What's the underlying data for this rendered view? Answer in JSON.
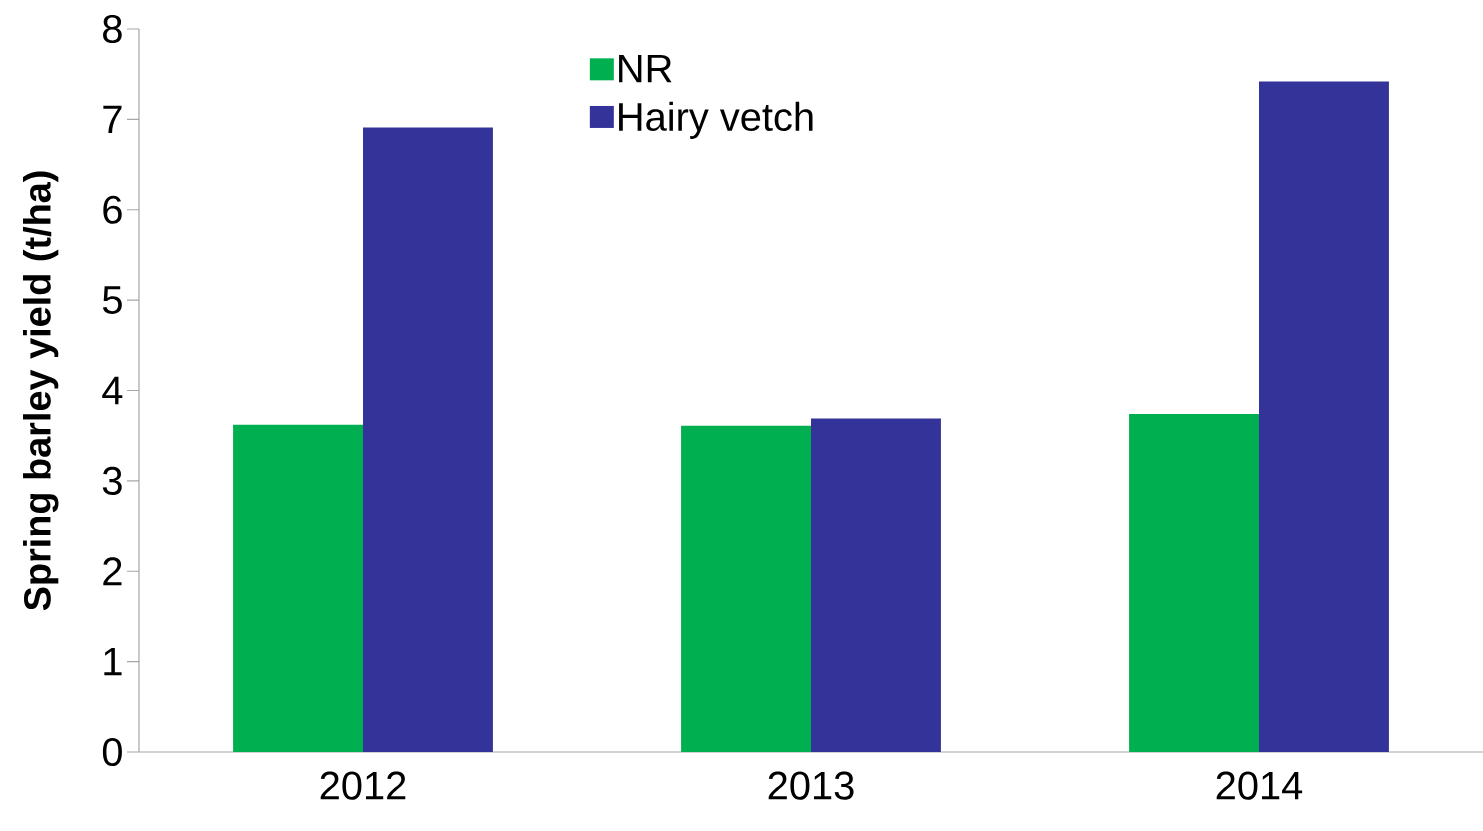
{
  "chart_data": {
    "type": "bar",
    "ylabel": "Spring barley yield (t/ha)",
    "categories": [
      "2012",
      "2013",
      "2014"
    ],
    "series": [
      {
        "name": "NR",
        "color": "#00b050",
        "values": [
          3.62,
          3.61,
          3.74
        ]
      },
      {
        "name": "Hairy vetch",
        "color": "#333399",
        "values": [
          6.91,
          3.69,
          7.42
        ]
      }
    ],
    "ylim": [
      0,
      8
    ],
    "yticks": [
      0,
      1,
      2,
      3,
      4,
      5,
      6,
      7,
      8
    ],
    "legend": "top"
  }
}
